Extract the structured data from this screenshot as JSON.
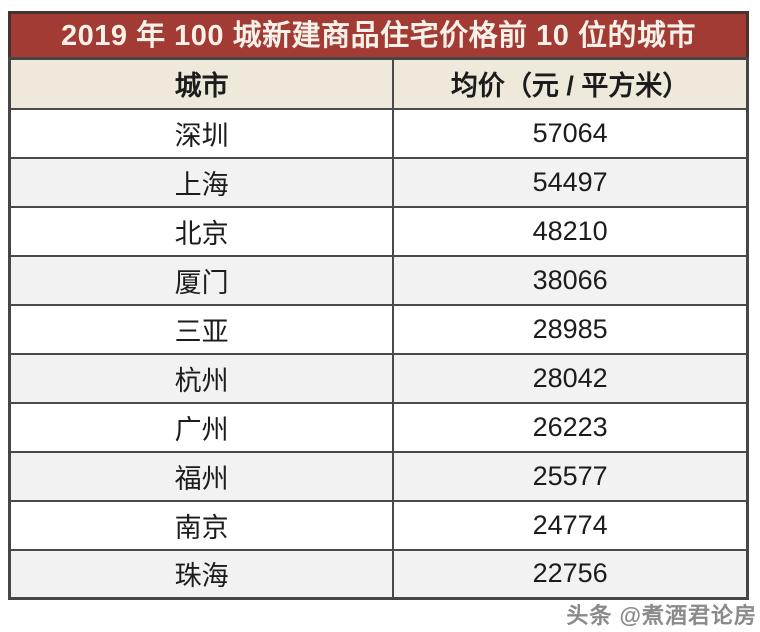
{
  "page": {
    "title": "2019 年 100 城新建商品住宅价格前 10 位的城市"
  },
  "table": {
    "columns": [
      "城市",
      "均价（元 / 平方米）"
    ],
    "rows": [
      {
        "city": "深圳",
        "price": "57064"
      },
      {
        "city": "上海",
        "price": "54497"
      },
      {
        "city": "北京",
        "price": "48210"
      },
      {
        "city": "厦门",
        "price": "38066"
      },
      {
        "city": "三亚",
        "price": "28985"
      },
      {
        "city": "杭州",
        "price": "28042"
      },
      {
        "city": "广州",
        "price": "26223"
      },
      {
        "city": "福州",
        "price": "25577"
      },
      {
        "city": "南京",
        "price": "24774"
      },
      {
        "city": "珠海",
        "price": "22756"
      }
    ]
  },
  "watermark": "头条 @煮酒君论房",
  "colors": {
    "title_bg": "#a23b33",
    "title_text": "#f8f1e9",
    "header_bg": "#efe9dc",
    "row_bg": "#ffffff",
    "row_alt_bg": "#f2f2f2",
    "border": "#4a4a4a"
  },
  "chart_data": {
    "type": "table",
    "title": "2019 年 100 城新建商品住宅价格前 10 位的城市",
    "columns": [
      "城市",
      "均价（元 / 平方米）"
    ],
    "categories": [
      "深圳",
      "上海",
      "北京",
      "厦门",
      "三亚",
      "杭州",
      "广州",
      "福州",
      "南京",
      "珠海"
    ],
    "values": [
      57064,
      54497,
      48210,
      38066,
      28985,
      28042,
      26223,
      25577,
      24774,
      22756
    ],
    "unit": "元/平方米",
    "layout": "two-column table, title banner on top, alternating row shading"
  }
}
